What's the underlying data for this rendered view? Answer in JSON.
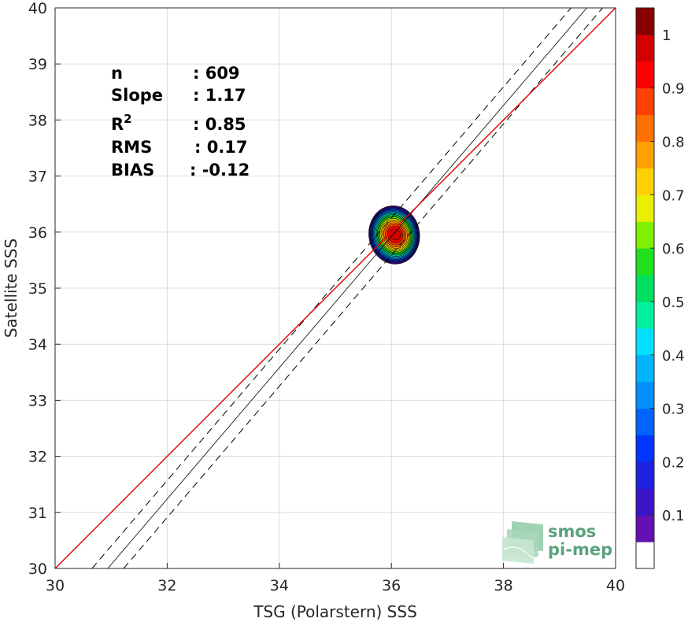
{
  "chart_data": {
    "type": "heatmap",
    "subtype": "density-contour-scatter",
    "xlabel": "TSG (Polarstern) SSS",
    "ylabel": "Satellite SSS",
    "xlim": [
      30,
      40
    ],
    "ylim": [
      30,
      40
    ],
    "xticks": [
      30,
      32,
      34,
      36,
      38,
      40
    ],
    "yticks": [
      30,
      31,
      32,
      33,
      34,
      35,
      36,
      37,
      38,
      39,
      40
    ],
    "grid": true,
    "stats": [
      {
        "label": "n",
        "value": ": 609"
      },
      {
        "label": "Slope",
        "value": ": 1.17"
      },
      {
        "label": "R",
        "sup": "2",
        "value": ": 0.85"
      },
      {
        "label": "RMS",
        "value": ": 0.17"
      },
      {
        "label": "BIAS",
        "value": ": -0.12"
      }
    ],
    "density": {
      "center": [
        36.05,
        35.95
      ],
      "outer_extent_x": [
        35.67,
        36.6
      ],
      "outer_extent_y": [
        35.43,
        36.5
      ],
      "levels": [
        0.05,
        0.1,
        0.15,
        0.2,
        0.25,
        0.3,
        0.35,
        0.4,
        0.45,
        0.5,
        0.55,
        0.6,
        0.65,
        0.7,
        0.75,
        0.8,
        0.85,
        0.9,
        0.95
      ]
    },
    "lines": {
      "identity": {
        "slope": 1,
        "intercept": 0,
        "color": "#e00000"
      },
      "regression": {
        "slope": 1.17,
        "intercept": -6.2,
        "style": "solid",
        "color": "#000000"
      },
      "bounds": [
        {
          "slope": 1.17,
          "intercept": -5.87,
          "style": "dashed"
        },
        {
          "slope": 1.17,
          "intercept": -6.53,
          "style": "dashed"
        }
      ]
    },
    "colorbar": {
      "ticks": [
        0.1,
        0.2,
        0.3,
        0.4,
        0.5,
        0.6,
        0.7,
        0.8,
        0.9,
        1
      ],
      "colors": [
        "#ffffff",
        "#6410b4",
        "#3c14c8",
        "#2020e0",
        "#0036ff",
        "#0063ff",
        "#0090ff",
        "#00b4ff",
        "#00e0ff",
        "#00f0a0",
        "#00e060",
        "#20e020",
        "#80f000",
        "#e8f000",
        "#ffd000",
        "#ffa000",
        "#ff7000",
        "#ff4000",
        "#ff0000",
        "#d40000",
        "#8a0000"
      ]
    }
  },
  "logo": {
    "line1": "smos",
    "line2": "pi-mep"
  }
}
